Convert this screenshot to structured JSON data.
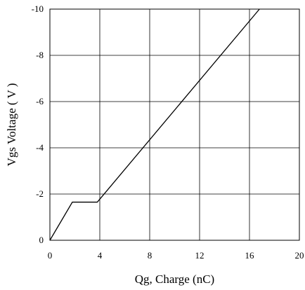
{
  "chart_data": {
    "type": "line",
    "title": "",
    "xlabel": "Qg, Charge (nC)",
    "ylabel": "Vgs Voltage ( V )",
    "xlim": [
      0,
      20
    ],
    "ylim": [
      0,
      -10
    ],
    "x_ticks": [
      0,
      4,
      8,
      12,
      16,
      20
    ],
    "y_ticks": [
      0,
      -2,
      -4,
      -6,
      -8,
      -10
    ],
    "x_tick_labels": [
      "0",
      "4",
      "8",
      "12",
      "16",
      "20"
    ],
    "y_tick_labels": [
      "0",
      "-2",
      "-4",
      "-6",
      "-8",
      "-10"
    ],
    "grid": true,
    "series": [
      {
        "x": [
          0,
          1.8,
          3.8,
          16.8
        ],
        "y": [
          0,
          -1.65,
          -1.65,
          -10
        ],
        "color": "#000000"
      }
    ]
  }
}
